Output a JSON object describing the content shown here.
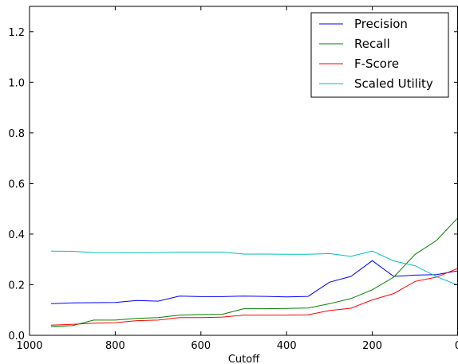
{
  "chart_data": {
    "type": "line",
    "xlabel": "Cutoff",
    "ylabel": "",
    "title": "",
    "xlim": [
      1000,
      0
    ],
    "ylim": [
      0,
      1.3
    ],
    "x_ticks": [
      1000,
      800,
      600,
      400,
      200,
      0
    ],
    "x_tick_labels": [
      "1000",
      "800",
      "600",
      "400",
      "200",
      "0"
    ],
    "y_ticks": [
      0.0,
      0.2,
      0.4,
      0.6,
      0.8,
      1.0,
      1.2
    ],
    "y_tick_labels": [
      "0.0",
      "0.2",
      "0.4",
      "0.6",
      "0.8",
      "1.0",
      "1.2"
    ],
    "grid": false,
    "legend_position": "top-right",
    "x": [
      950,
      900,
      850,
      800,
      750,
      700,
      650,
      600,
      550,
      500,
      450,
      400,
      350,
      300,
      250,
      200,
      150,
      100,
      50,
      0
    ],
    "series": [
      {
        "name": "Precision",
        "color": "#0000ff",
        "values": [
          0.125,
          0.128,
          0.129,
          0.13,
          0.138,
          0.135,
          0.155,
          0.153,
          0.153,
          0.155,
          0.154,
          0.152,
          0.154,
          0.21,
          0.233,
          0.295,
          0.233,
          0.238,
          0.24,
          0.255
        ]
      },
      {
        "name": "Recall",
        "color": "#008000",
        "values": [
          0.035,
          0.038,
          0.06,
          0.06,
          0.067,
          0.07,
          0.08,
          0.082,
          0.083,
          0.105,
          0.105,
          0.106,
          0.108,
          0.125,
          0.145,
          0.18,
          0.23,
          0.32,
          0.375,
          0.465
        ]
      },
      {
        "name": "F-Score",
        "color": "#ff0000",
        "values": [
          0.04,
          0.043,
          0.048,
          0.05,
          0.058,
          0.06,
          0.07,
          0.07,
          0.072,
          0.08,
          0.08,
          0.08,
          0.081,
          0.098,
          0.107,
          0.14,
          0.165,
          0.213,
          0.23,
          0.265
        ]
      },
      {
        "name": "Scaled Utility",
        "color": "#00bfbf",
        "values": [
          0.333,
          0.332,
          0.327,
          0.327,
          0.326,
          0.327,
          0.329,
          0.329,
          0.329,
          0.321,
          0.321,
          0.32,
          0.32,
          0.323,
          0.312,
          0.333,
          0.294,
          0.275,
          0.232,
          0.198
        ]
      }
    ]
  }
}
